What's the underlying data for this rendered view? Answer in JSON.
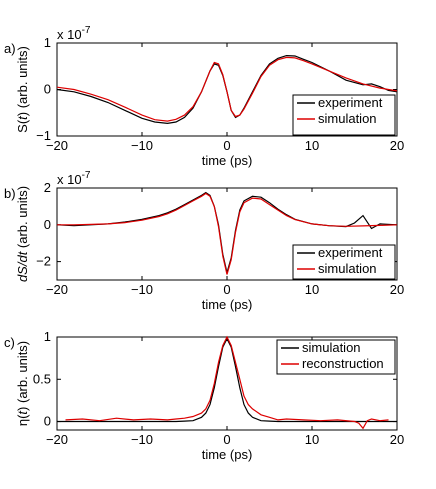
{
  "chart_data": [
    {
      "type": "line",
      "panel_label": "a)",
      "xlabel": "time (ps)",
      "ylabel_parts": [
        "S(",
        "t",
        ") (arb. units)"
      ],
      "exponent_label": "x 10",
      "exponent_power": "-7",
      "xlim": [
        -20,
        20
      ],
      "ylim": [
        -1,
        1
      ],
      "xticks": [
        -20,
        -10,
        0,
        10,
        20
      ],
      "xtick_labels": [
        "−20",
        "−10",
        "0",
        "10",
        "20"
      ],
      "yticks": [
        -1,
        0,
        1
      ],
      "ytick_labels": [
        "−1",
        "0",
        "1"
      ],
      "legend": "bottom-right",
      "series": [
        {
          "name": "experiment",
          "color": "#000000",
          "x": [
            -20,
            -18,
            -16,
            -14,
            -12,
            -10,
            -8.5,
            -7,
            -6,
            -5,
            -4,
            -3,
            -2,
            -1.5,
            -1,
            -0.5,
            0,
            0.5,
            1,
            1.5,
            2,
            3,
            4,
            5,
            6,
            7,
            8,
            9,
            10,
            12,
            14,
            16,
            17,
            18,
            19,
            20
          ],
          "y": [
            0,
            -0.05,
            -0.15,
            -0.28,
            -0.45,
            -0.62,
            -0.7,
            -0.73,
            -0.7,
            -0.6,
            -0.4,
            -0.05,
            0.4,
            0.55,
            0.52,
            0.3,
            -0.05,
            -0.45,
            -0.6,
            -0.55,
            -0.4,
            -0.05,
            0.3,
            0.55,
            0.67,
            0.73,
            0.72,
            0.65,
            0.58,
            0.4,
            0.2,
            0.1,
            0.12,
            0.06,
            -0.02,
            -0.05
          ]
        },
        {
          "name": "simulation",
          "color": "#dd0000",
          "x": [
            -20,
            -18,
            -16,
            -14,
            -12,
            -10,
            -8.5,
            -7,
            -6,
            -5,
            -4,
            -3,
            -2,
            -1.5,
            -1,
            -0.5,
            0,
            0.5,
            1,
            1.5,
            2,
            3,
            4,
            5,
            6,
            7,
            8,
            9,
            10,
            12,
            14,
            16,
            18,
            20
          ],
          "y": [
            0.05,
            0,
            -0.1,
            -0.22,
            -0.38,
            -0.55,
            -0.65,
            -0.68,
            -0.64,
            -0.55,
            -0.37,
            -0.05,
            0.4,
            0.58,
            0.55,
            0.32,
            -0.05,
            -0.45,
            -0.58,
            -0.55,
            -0.42,
            -0.08,
            0.28,
            0.52,
            0.64,
            0.69,
            0.68,
            0.62,
            0.55,
            0.4,
            0.25,
            0.12,
            0.03,
            -0.03
          ]
        }
      ]
    },
    {
      "type": "line",
      "panel_label": "b)",
      "xlabel": "time (ps)",
      "ylabel_parts": [
        "dS/dt",
        "",
        " (arb. units)"
      ],
      "exponent_label": "x 10",
      "exponent_power": "-7",
      "xlim": [
        -20,
        20
      ],
      "ylim": [
        -3,
        2
      ],
      "xticks": [
        -20,
        -10,
        0,
        10,
        20
      ],
      "xtick_labels": [
        "−20",
        "−10",
        "0",
        "10",
        "20"
      ],
      "yticks": [
        -2,
        0,
        2
      ],
      "ytick_labels": [
        "−2",
        "0",
        "2"
      ],
      "legend": "bottom-right",
      "series": [
        {
          "name": "experiment",
          "color": "#000000",
          "x": [
            -20,
            -18,
            -16,
            -14,
            -12,
            -10,
            -8,
            -7,
            -6,
            -5,
            -4,
            -3,
            -2.5,
            -2,
            -1.5,
            -1,
            -0.5,
            0,
            0.5,
            1,
            1.5,
            2,
            3,
            4,
            5,
            6,
            7,
            8,
            10,
            12,
            14,
            15,
            16,
            17,
            18,
            20
          ],
          "y": [
            0,
            -0.05,
            0,
            0.05,
            0.15,
            0.3,
            0.5,
            0.65,
            0.85,
            1.1,
            1.35,
            1.6,
            1.75,
            1.6,
            1.0,
            0.0,
            -1.6,
            -2.6,
            -1.8,
            -0.3,
            0.8,
            1.3,
            1.55,
            1.5,
            1.2,
            0.85,
            0.55,
            0.3,
            0.05,
            -0.05,
            -0.1,
            0.1,
            0.5,
            -0.2,
            0.05,
            0
          ]
        },
        {
          "name": "simulation",
          "color": "#dd0000",
          "x": [
            -20,
            -18,
            -16,
            -14,
            -12,
            -10,
            -8,
            -7,
            -6,
            -5,
            -4,
            -3,
            -2.5,
            -2,
            -1.5,
            -1,
            -0.5,
            0,
            0.5,
            1,
            1.5,
            2,
            3,
            4,
            5,
            6,
            7,
            8,
            10,
            12,
            14,
            16,
            18,
            20
          ],
          "y": [
            0,
            0,
            0.02,
            0.05,
            0.12,
            0.25,
            0.45,
            0.6,
            0.8,
            1.05,
            1.3,
            1.55,
            1.7,
            1.55,
            1.0,
            -0.1,
            -1.7,
            -2.7,
            -1.9,
            -0.4,
            0.7,
            1.2,
            1.45,
            1.4,
            1.1,
            0.8,
            0.5,
            0.28,
            0.05,
            -0.05,
            -0.08,
            -0.06,
            -0.03,
            0
          ]
        }
      ]
    },
    {
      "type": "line",
      "panel_label": "c)",
      "xlabel": "time (ps)",
      "ylabel_parts": [
        "η(",
        "t",
        ") (arb. units)"
      ],
      "exponent_label": "",
      "exponent_power": "",
      "xlim": [
        -20,
        20
      ],
      "ylim": [
        -0.1,
        1
      ],
      "xticks": [
        -20,
        -10,
        0,
        10,
        20
      ],
      "xtick_labels": [
        "−20",
        "−10",
        "0",
        "10",
        "20"
      ],
      "yticks": [
        0,
        0.5,
        1
      ],
      "ytick_labels": [
        "0",
        "0.5",
        "1"
      ],
      "legend": "top-right",
      "series": [
        {
          "name": "simulation",
          "color": "#000000",
          "x": [
            -20,
            -10,
            -6,
            -5,
            -4,
            -3,
            -2.5,
            -2,
            -1.5,
            -1,
            -0.5,
            0,
            0.5,
            1,
            1.5,
            2,
            2.5,
            3,
            4,
            5,
            6,
            10,
            20
          ],
          "y": [
            0,
            0,
            0,
            0.005,
            0.01,
            0.05,
            0.1,
            0.2,
            0.4,
            0.65,
            0.88,
            0.98,
            0.88,
            0.65,
            0.4,
            0.2,
            0.1,
            0.05,
            0.01,
            0.005,
            0,
            0,
            0
          ]
        },
        {
          "name": "reconstruction",
          "color": "#dd0000",
          "x": [
            -19,
            -17,
            -15,
            -13,
            -11,
            -9,
            -7,
            -6,
            -5,
            -4,
            -3,
            -2.5,
            -2,
            -1.5,
            -1,
            -0.5,
            0,
            0.5,
            1,
            1.5,
            2,
            2.5,
            3,
            4,
            5,
            6,
            7,
            9,
            11,
            13,
            15,
            15.5,
            16,
            16.5,
            17,
            18,
            19
          ],
          "y": [
            0.02,
            0.03,
            0.01,
            0.04,
            0.02,
            0.03,
            0.02,
            0.03,
            0.04,
            0.06,
            0.1,
            0.15,
            0.25,
            0.45,
            0.7,
            0.9,
            1.0,
            0.9,
            0.7,
            0.5,
            0.3,
            0.2,
            0.15,
            0.08,
            0.05,
            0.02,
            0.03,
            0.02,
            0.01,
            0.02,
            0.0,
            -0.02,
            -0.08,
            0.01,
            0.03,
            0.01,
            0.02
          ]
        }
      ]
    }
  ]
}
